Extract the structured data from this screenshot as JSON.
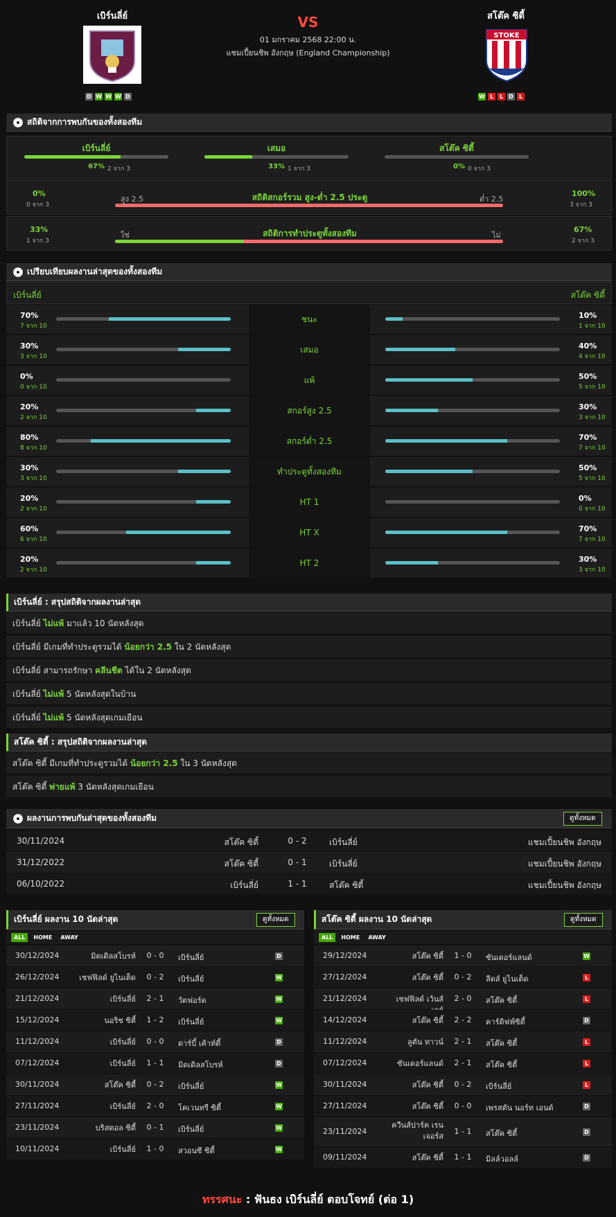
{
  "home": {
    "name": "เบิร์นลี่ย์",
    "form": [
      "D",
      "W",
      "W",
      "W",
      "D"
    ]
  },
  "away": {
    "name": "สโต๊ค ซิตี้",
    "form": [
      "W",
      "L",
      "L",
      "D",
      "L"
    ]
  },
  "vs": "VS",
  "datetime": "01 มกราคม 2568 22:00 น.",
  "league": "แชมเปี้ยนชิพ อังกฤษ (England Championship)",
  "h2h_stats": {
    "title": "สถิติจากการพบกันของทั้งสองทีม",
    "cols": [
      {
        "label": "เบิร์นลี่ย์",
        "pct": "67%",
        "count": "2 จาก 3",
        "fill": 0.67
      },
      {
        "label": "เสมอ",
        "pct": "33%",
        "count": "1 จาก 3",
        "fill": 0.33
      },
      {
        "label": "สโต๊ค ซิตี้",
        "pct": "0%",
        "count": "0 จาก 3",
        "fill": 0
      }
    ],
    "ou": {
      "title": "สถิติสกอร์รวม สูง-ต่ำ 2.5 ประตู",
      "left_label": "สูง 2.5",
      "right_label": "ต่ำ 2.5",
      "left_pct": "0%",
      "left_count": "0 จาก 3",
      "right_pct": "100%",
      "right_count": "3 จาก 3",
      "fill": 0
    },
    "btts": {
      "title": "สถิติการทำประตูทั้งสองทีม",
      "left_label": "ใช่",
      "right_label": "ไม่",
      "left_pct": "33%",
      "left_count": "1 จาก 3",
      "right_pct": "67%",
      "right_count": "2 จาก 3",
      "fill": 0.33
    }
  },
  "compare": {
    "title": "เปรียบเทียบผลงานล่าสุดของทั้งสองทีม",
    "home_label": "เบิร์นลี่ย์",
    "away_label": "สโต๊ค ซิตี้",
    "rows": [
      {
        "label": "ชนะ",
        "hp": "70%",
        "hc": "7 จาก 10",
        "hf": 0.7,
        "ap": "10%",
        "ac": "1 จาก 10",
        "af": 0.1
      },
      {
        "label": "เสมอ",
        "hp": "30%",
        "hc": "3 จาก 10",
        "hf": 0.3,
        "ap": "40%",
        "ac": "4 จาก 10",
        "af": 0.4
      },
      {
        "label": "แพ้",
        "hp": "0%",
        "hc": "0 จาก 10",
        "hf": 0,
        "ap": "50%",
        "ac": "5 จาก 10",
        "af": 0.5
      },
      {
        "label": "สกอร์สูง 2.5",
        "hp": "20%",
        "hc": "2 จาก 10",
        "hf": 0.2,
        "ap": "30%",
        "ac": "3 จาก 10",
        "af": 0.3
      },
      {
        "label": "สกอร์ต่ำ 2.5",
        "hp": "80%",
        "hc": "8 จาก 10",
        "hf": 0.8,
        "ap": "70%",
        "ac": "7 จาก 10",
        "af": 0.7
      },
      {
        "label": "ทำประตูทั้งสองทีม",
        "hp": "30%",
        "hc": "3 จาก 10",
        "hf": 0.3,
        "ap": "50%",
        "ac": "5 จาก 10",
        "af": 0.5
      },
      {
        "label": "HT 1",
        "hp": "20%",
        "hc": "2 จาก 10",
        "hf": 0.2,
        "ap": "0%",
        "ac": "0 จาก 10",
        "af": 0
      },
      {
        "label": "HT X",
        "hp": "60%",
        "hc": "6 จาก 10",
        "hf": 0.6,
        "ap": "70%",
        "ac": "7 จาก 10",
        "af": 0.7
      },
      {
        "label": "HT 2",
        "hp": "20%",
        "hc": "2 จาก 10",
        "hf": 0.2,
        "ap": "30%",
        "ac": "3 จาก 10",
        "af": 0.3
      }
    ]
  },
  "home_summary": {
    "title": "เบิร์นลี่ย์ : สรุปสถิติจากผลงานล่าสุด",
    "rows": [
      [
        "เบิร์นลี่ย์",
        "ไม่แพ้",
        "มาแล้ว 10 นัดหลังสุด"
      ],
      [
        "เบิร์นลี่ย์ มีเกมที่ทำประตูรวมได้",
        "น้อยกว่า  2.5",
        "ใน 2 นัดหลังสุด"
      ],
      [
        "เบิร์นลี่ย์  สามารถรักษา",
        "คลีนชีต",
        "ได้ใน 2 นัดหลังสุด"
      ],
      [
        "เบิร์นลี่ย์",
        "ไม่แพ้",
        "5  นัดหลังสุดในบ้าน"
      ],
      [
        "เบิร์นลี่ย์",
        "ไม่แพ้",
        "5  นัดหลังสุดเกมเยือน"
      ]
    ]
  },
  "away_summary": {
    "title": "สโต๊ค ซิตี้ : สรุปสถิติจากผลงานล่าสุด",
    "rows": [
      [
        "สโต๊ค ซิตี้ มีเกมที่ทำประตูรวมได้",
        "น้อยกว่า  2.5",
        "ใน 3 นัดหลังสุด"
      ],
      [
        "สโต๊ค ซิตี้",
        "พ่ายแพ้",
        "3  นัดหลังสุดเกมเยือน"
      ]
    ]
  },
  "h2h": {
    "title": "ผลงานการพบกันล่าสุดของทั้งสองทีม",
    "all": "ดูทั้งหมด",
    "rows": [
      {
        "date": "30/11/2024",
        "home": "สโต๊ค ซิตี้",
        "score": "0 - 2",
        "away": "เบิร์นลี่ย์",
        "league": "แชมเปี้ยนชิพ อังกฤษ"
      },
      {
        "date": "31/12/2022",
        "home": "สโต๊ค ซิตี้",
        "score": "0 - 1",
        "away": "เบิร์นลี่ย์",
        "league": "แชมเปี้ยนชิพ อังกฤษ"
      },
      {
        "date": "06/10/2022",
        "home": "เบิร์นลี่ย์",
        "score": "1 - 1",
        "away": "สโต๊ค ซิตี้",
        "league": "แชมเปี้ยนชิพ อังกฤษ"
      }
    ]
  },
  "recent_home": {
    "title": "เบิร์นลี่ย์ ผลงาน 10 นัดล่าสุด",
    "all": "ดูทั้งหมด",
    "tabs": [
      "ALL",
      "HOME",
      "AWAY"
    ],
    "rows": [
      [
        "30/12/2024",
        "มิดเดิลสโบรห์",
        "0 - 0",
        "เบิร์นลี่ย์",
        "D"
      ],
      [
        "26/12/2024",
        "เชฟฟิลด์ ยูไนเต็ด",
        "0 - 2",
        "เบิร์นลี่ย์",
        "W"
      ],
      [
        "21/12/2024",
        "เบิร์นลี่ย์",
        "2 - 1",
        "วัตฟอร์ด",
        "W"
      ],
      [
        "15/12/2024",
        "นอริช ซิตี้",
        "1 - 2",
        "เบิร์นลี่ย์",
        "W"
      ],
      [
        "11/12/2024",
        "เบิร์นลี่ย์",
        "0 - 0",
        "ดาร์บี้ เค้าท์ตี้",
        "D"
      ],
      [
        "07/12/2024",
        "เบิร์นลี่ย์",
        "1 - 1",
        "มิดเดิลสโบรห์",
        "D"
      ],
      [
        "30/11/2024",
        "สโต๊ค ซิตี้",
        "0 - 2",
        "เบิร์นลี่ย์",
        "W"
      ],
      [
        "27/11/2024",
        "เบิร์นลี่ย์",
        "2 - 0",
        "โคเวนทรี ซิตี้",
        "W"
      ],
      [
        "23/11/2024",
        "บริสตอล ซิตี้",
        "0 - 1",
        "เบิร์นลี่ย์",
        "W"
      ],
      [
        "10/11/2024",
        "เบิร์นลี่ย์",
        "1 - 0",
        "สวอนซี ซิตี้",
        "W"
      ]
    ]
  },
  "recent_away": {
    "title": "สโต๊ค ซิตี้ ผลงาน 10 นัดล่าสุด",
    "all": "ดูทั้งหมด",
    "tabs": [
      "ALL",
      "HOME",
      "AWAY"
    ],
    "rows": [
      [
        "29/12/2024",
        "สโต๊ค ซิตี้",
        "1 - 0",
        "ซันเดอร์แลนด์",
        "W"
      ],
      [
        "27/12/2024",
        "สโต๊ค ซิตี้",
        "0 - 2",
        "ลีดส์ ยูไนเต็ด",
        "L"
      ],
      [
        "21/12/2024",
        "เชฟฟิลด์ เว้นส์เดย์",
        "2 - 0",
        "สโต๊ค ซิตี้",
        "L"
      ],
      [
        "14/12/2024",
        "สโต๊ค ซิตี้",
        "2 - 2",
        "คาร์ดิฟฟ์ซิตี้",
        "D"
      ],
      [
        "11/12/2024",
        "ลูตัน ทาวน์",
        "2 - 1",
        "สโต๊ค ซิตี้",
        "L"
      ],
      [
        "07/12/2024",
        "ซันเดอร์แลนด์",
        "2 - 1",
        "สโต๊ค ซิตี้",
        "L"
      ],
      [
        "30/11/2024",
        "สโต๊ค ซิตี้",
        "0 - 2",
        "เบิร์นลี่ย์",
        "L"
      ],
      [
        "27/11/2024",
        "สโต๊ค ซิตี้",
        "0 - 0",
        "เพรสตัน นอร์ท เอนด์",
        "D"
      ],
      [
        "23/11/2024",
        "ควีนส์ปาร์ค เรนเจอร์ส",
        "1 - 1",
        "สโต๊ค ซิตี้",
        "D"
      ],
      [
        "09/11/2024",
        "สโต๊ค ซิตี้",
        "1 - 1",
        "มิลล์วอลล์",
        "D"
      ]
    ]
  },
  "prediction": {
    "label": "ทรรศนะ",
    "sep": ":",
    "text": "ฟันธง เบิร์นลี่ย์ ตอบโจทย์ (ต่อ 1)"
  },
  "colors": {
    "accent": "#7ad33a",
    "vs": "#ff4a3c",
    "cyan": "#5bc0c8",
    "red_bar": "#ff6b6b"
  }
}
